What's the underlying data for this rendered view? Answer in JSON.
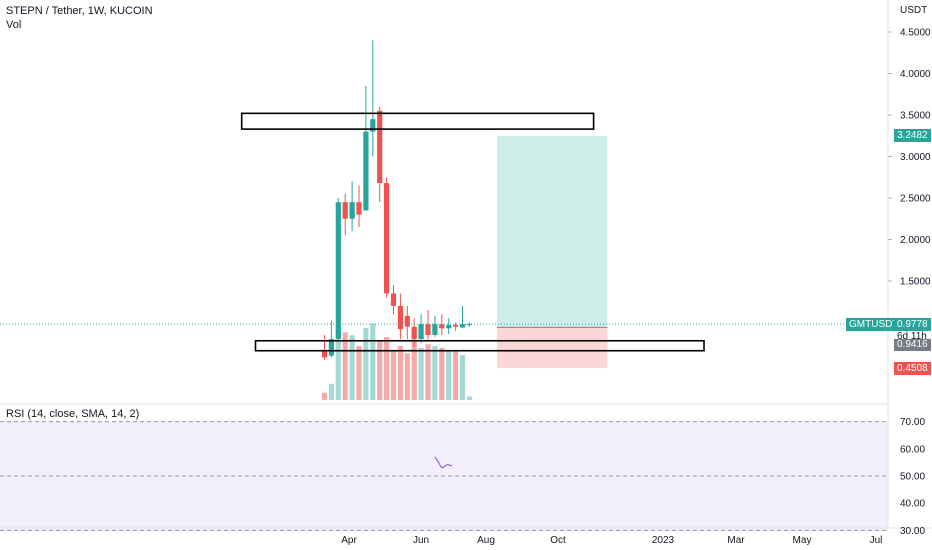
{
  "header": {
    "title": "STEPN / Tether, 1W, KUCOIN",
    "volume_label": "Vol",
    "rsi_label": "RSI (14, close, SMA, 14, 2)"
  },
  "price_axis": {
    "unit": "USDT",
    "ticks": [
      "4.5000",
      "4.0000",
      "3.5000",
      "3.0000",
      "2.5000",
      "2.0000",
      "1.5000"
    ],
    "badges": {
      "target": "3.2482",
      "symbol": "GMTUSDT",
      "last": "0.9778",
      "countdown": "6d 11h",
      "entry": "0.9416",
      "stop": "0.4508"
    }
  },
  "rsi_axis": {
    "ticks": [
      "70.00",
      "60.00",
      "50.00",
      "40.00",
      "30.00"
    ]
  },
  "time_axis": {
    "ticks": [
      "Apr",
      "Jun",
      "Aug",
      "Oct",
      "2023",
      "Mar",
      "May",
      "Jul"
    ]
  },
  "colors": {
    "up": "#26a69a",
    "down": "#ef5350",
    "vol_up": "#a3d8d3",
    "vol_down": "#f5a9a8",
    "profit_zone": "#cdeee8",
    "loss_zone": "#fcd7d8",
    "rsi_bg": "#f2eefb",
    "rsi_line": "#7e57c2",
    "target_badge": "#26a69a",
    "stop_badge": "#ef5350"
  },
  "chart_data": {
    "type": "candlestick",
    "symbol": "GMTUSDT",
    "timeframe": "1W",
    "exchange": "KUCOIN",
    "candles": [
      {
        "o": 0.65,
        "h": 0.85,
        "l": 0.55,
        "c": 0.58
      },
      {
        "o": 0.6,
        "h": 1.02,
        "l": 0.58,
        "c": 0.8
      },
      {
        "o": 0.8,
        "h": 2.5,
        "l": 0.78,
        "c": 2.45
      },
      {
        "o": 2.45,
        "h": 2.55,
        "l": 2.05,
        "c": 2.25
      },
      {
        "o": 2.25,
        "h": 2.7,
        "l": 2.1,
        "c": 2.45
      },
      {
        "o": 2.45,
        "h": 2.65,
        "l": 2.15,
        "c": 2.3
      },
      {
        "o": 2.35,
        "h": 3.85,
        "l": 2.35,
        "c": 3.3
      },
      {
        "o": 3.3,
        "h": 4.4,
        "l": 3.0,
        "c": 3.45
      },
      {
        "o": 3.55,
        "h": 3.6,
        "l": 2.45,
        "c": 2.68
      },
      {
        "o": 2.68,
        "h": 2.75,
        "l": 1.3,
        "c": 1.35
      },
      {
        "o": 1.35,
        "h": 1.45,
        "l": 1.1,
        "c": 1.2
      },
      {
        "o": 1.2,
        "h": 1.35,
        "l": 0.8,
        "c": 0.92
      },
      {
        "o": 1.08,
        "h": 1.2,
        "l": 0.8,
        "c": 0.95
      },
      {
        "o": 0.95,
        "h": 1.05,
        "l": 0.7,
        "c": 0.8
      },
      {
        "o": 0.8,
        "h": 1.1,
        "l": 0.75,
        "c": 0.98
      },
      {
        "o": 0.98,
        "h": 1.15,
        "l": 0.8,
        "c": 0.85
      },
      {
        "o": 0.85,
        "h": 1.08,
        "l": 0.83,
        "c": 0.98
      },
      {
        "o": 0.98,
        "h": 1.1,
        "l": 0.85,
        "c": 0.93
      },
      {
        "o": 0.93,
        "h": 1.05,
        "l": 0.86,
        "c": 0.97
      },
      {
        "o": 0.97,
        "h": 1.0,
        "l": 0.9,
        "c": 0.95
      },
      {
        "o": 0.94,
        "h": 1.2,
        "l": 0.93,
        "c": 0.98
      },
      {
        "o": 0.97,
        "h": 1.0,
        "l": 0.95,
        "c": 0.98
      }
    ],
    "volumes": [
      0.08,
      0.18,
      0.65,
      0.75,
      0.72,
      0.6,
      0.8,
      0.85,
      0.65,
      0.7,
      0.55,
      0.6,
      0.52,
      0.65,
      0.58,
      0.62,
      0.6,
      0.58,
      0.55,
      0.55,
      0.5,
      0.04
    ],
    "first_candle_date": "2022-03-14",
    "rsi": [
      57.0,
      56.0,
      55.0,
      53.5,
      53.0,
      53.5,
      54.0,
      54.2,
      53.8,
      54.0
    ],
    "rsi_ylim": [
      25,
      75
    ],
    "rsi_bands": [
      30,
      50,
      70
    ],
    "ylim": [
      0.5,
      4.7
    ],
    "rectangles": [
      {
        "y_low": 3.33,
        "y_high": 3.52,
        "x_start": "2021-12-20",
        "x_end": "2022-12-12"
      },
      {
        "y_low": 0.66,
        "y_high": 0.78,
        "x_start": "2022-01-03",
        "x_end": "2023-04-03"
      }
    ],
    "long_position": {
      "entry": 0.9416,
      "target": 3.2482,
      "stop": 0.4508,
      "x_start": "2022-09-05",
      "x_end": "2022-12-26"
    },
    "grid": false
  }
}
